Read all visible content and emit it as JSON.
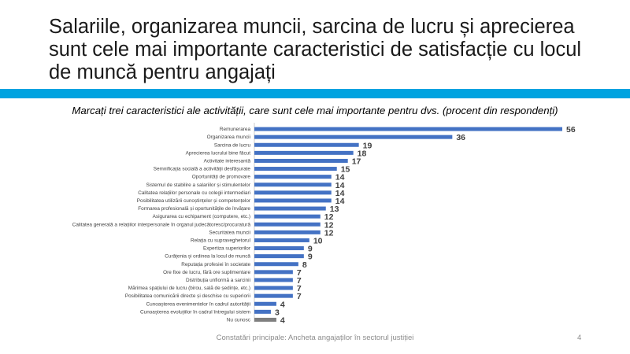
{
  "slide": {
    "title": "Salariile, organizarea muncii, sarcina de lucru și aprecierea sunt cele mai importante caracteristici de satisfacție cu locul de muncă pentru angajați",
    "footer": "Constatări principale: Ancheta angajaților în sectorul justiției",
    "page_number": "4"
  },
  "colors": {
    "accent": "#00a3e0",
    "bar": "#4472c4",
    "bar_last": "#7f7f7f",
    "label_text": "#404040"
  },
  "chart_data": {
    "type": "bar",
    "orientation": "horizontal",
    "title": "Marcați trei caracteristici ale activității, care sunt cele mai importante pentru dvs. (procent din respondenți)",
    "categories": [
      "Remunerarea",
      "Organizarea muncii",
      "Sarcina de lucru",
      "Aprecierea lucrului bine făcut",
      "Activitate interesantă",
      "Semnificația socială a activității desfășurate",
      "Oportunități de promovare",
      "Sistemul de stabilire a salariilor și stimulentelor",
      "Calitatea relațiilor personale cu colegii intermediari",
      "Posibilitatea utilizării cunoștințelor și competențelor",
      "Formarea profesională și oportunitățile de învățare",
      "Asigurarea cu echipament (computere, etc.)",
      "Calitatea generală a relațiilor interpersonale în organul judecătoresc/procuratură",
      "Securitatea muncii",
      "Relația cu supraveghetorul",
      "Expertiza superiorilor",
      "Curățenia și ordinea la locul de muncă",
      "Reputația profesiei în societate",
      "Ore fixe de lucru, fără ore suplimentare",
      "Distribuția unfiormă a sarcinii",
      "Mărimea spațiului de lucru (birou, sală de ședințe, etc.)",
      "Posibilitatea comunicării directe și deschise cu superiorii",
      "Cunoașterea evenimentelor în cadrul autorității",
      "Cunoașterea evoluțiilor în cadrul întregului sistem",
      "Nu cunosc"
    ],
    "values": [
      56,
      36,
      19,
      18,
      17,
      15,
      14,
      14,
      14,
      14,
      13,
      12,
      12,
      12,
      10,
      9,
      9,
      8,
      7,
      7,
      7,
      7,
      4,
      3,
      4
    ],
    "xlim": [
      0,
      56
    ],
    "grid": false,
    "data_labels": true,
    "legend": "none"
  }
}
